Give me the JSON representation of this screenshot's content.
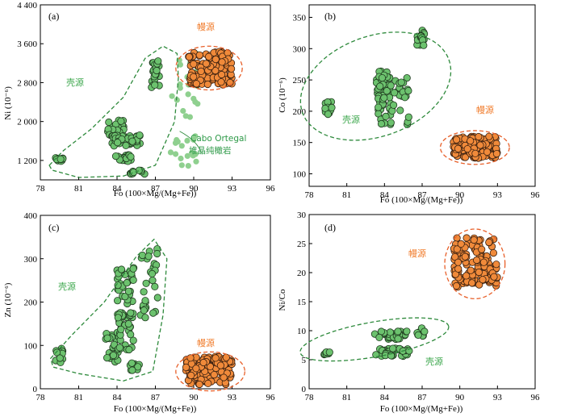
{
  "colors": {
    "crust_fill": "#6cc26e",
    "crust_stroke": "#1f3a1f",
    "mantle_fill": "#f08a3a",
    "mantle_stroke": "#3a2010",
    "crust_ellipse": "#2e8a3c",
    "mantle_ellipse": "#e8602a",
    "crust_text": "#3fa84f",
    "mantle_text": "#f07a28",
    "cabo_fill": "#8fd08f"
  },
  "labels": {
    "crust": "壳源",
    "mantle": "幔源",
    "cabo_line1": "Cabo Ortegal",
    "cabo_line2": "堆晶纯橄岩"
  },
  "chart_data": [
    {
      "panel": "(a)",
      "type": "scatter",
      "xlabel": "Fo (100×Mg/(Mg+Fe))",
      "ylabel": "Ni (10⁻⁶)",
      "xlim": [
        78,
        96
      ],
      "ylim": [
        800,
        4400
      ],
      "xticks": [
        "78",
        "81",
        "84",
        "87",
        "90",
        "93",
        "96"
      ],
      "yticks": [
        "1 200",
        "2 000",
        "2 800",
        "3 600",
        "4 400"
      ],
      "ytick_values": [
        1200,
        2000,
        2800,
        3600,
        4400
      ],
      "series": [
        {
          "name": "壳源",
          "clusters": [
            {
              "x": [
                79.2,
                79.8
              ],
              "y": [
                1180,
                1260
              ],
              "n": 14
            },
            {
              "x": [
                83.2,
                84.6
              ],
              "y": [
                1700,
                2050
              ],
              "n": 30
            },
            {
              "x": [
                83.6,
                85.8
              ],
              "y": [
                1500,
                1720
              ],
              "n": 40
            },
            {
              "x": [
                83.8,
                85.2
              ],
              "y": [
                1180,
                1320
              ],
              "n": 18
            },
            {
              "x": [
                85.0,
                86.2
              ],
              "y": [
                920,
                1000
              ],
              "n": 10
            },
            {
              "x": [
                86.7,
                87.3
              ],
              "y": [
                2700,
                3250
              ],
              "n": 26
            }
          ]
        },
        {
          "name": "Cabo Ortegal 堆晶纯橄岩",
          "clusters": [
            {
              "x": [
                88.2,
                90.4
              ],
              "y": [
                1050,
                3450
              ],
              "n": 40
            }
          ]
        },
        {
          "name": "幔源",
          "clusters": [
            {
              "x": [
                89.6,
                93.0
              ],
              "y": [
                2750,
                3450
              ],
              "n": 150
            }
          ]
        }
      ]
    },
    {
      "panel": "(b)",
      "type": "scatter",
      "xlabel": "Fo (100×Mg/(Mg+Fe))",
      "ylabel": "Co (10⁻⁶)",
      "xlim": [
        78,
        96
      ],
      "ylim": [
        80,
        370
      ],
      "xticks": [
        "78",
        "81",
        "84",
        "87",
        "90",
        "93",
        "96"
      ],
      "yticks": [
        "100",
        "150",
        "200",
        "250",
        "300",
        "350"
      ],
      "ytick_values": [
        100,
        150,
        200,
        250,
        300,
        350
      ],
      "series": [
        {
          "name": "壳源",
          "clusters": [
            {
              "x": [
                79.2,
                79.8
              ],
              "y": [
                195,
                215
              ],
              "n": 14
            },
            {
              "x": [
                83.3,
                84.5
              ],
              "y": [
                225,
                265
              ],
              "n": 30
            },
            {
              "x": [
                83.5,
                86.0
              ],
              "y": [
                178,
                260
              ],
              "n": 60
            },
            {
              "x": [
                86.6,
                87.2
              ],
              "y": [
                305,
                330
              ],
              "n": 20
            }
          ]
        },
        {
          "name": "幔源",
          "clusters": [
            {
              "x": [
                89.5,
                93.0
              ],
              "y": [
                125,
                160
              ],
              "n": 150
            }
          ]
        }
      ]
    },
    {
      "panel": "(c)",
      "type": "scatter",
      "xlabel": "Fo (100×Mg/(Mg+Fe))",
      "ylabel": "Zn (10⁻⁶)",
      "xlim": [
        78,
        96
      ],
      "ylim": [
        0,
        400
      ],
      "xticks": [
        "78",
        "81",
        "84",
        "87",
        "90",
        "93",
        "96"
      ],
      "yticks": [
        "0",
        "100",
        "200",
        "300",
        "400"
      ],
      "ytick_values": [
        0,
        100,
        200,
        300,
        400
      ],
      "series": [
        {
          "name": "壳源",
          "clusters": [
            {
              "x": [
                79.2,
                79.8
              ],
              "y": [
                60,
                100
              ],
              "n": 14
            },
            {
              "x": [
                83.0,
                84.2
              ],
              "y": [
                55,
                130
              ],
              "n": 25
            },
            {
              "x": [
                84.0,
                85.3
              ],
              "y": [
                90,
                280
              ],
              "n": 70
            },
            {
              "x": [
                85.0,
                86.0
              ],
              "y": [
                40,
                65
              ],
              "n": 10
            },
            {
              "x": [
                85.8,
                87.2
              ],
              "y": [
                150,
                330
              ],
              "n": 30
            }
          ]
        },
        {
          "name": "幔源",
          "clusters": [
            {
              "x": [
                89.4,
                93.0
              ],
              "y": [
                10,
                75
              ],
              "n": 150
            }
          ]
        }
      ]
    },
    {
      "panel": "(d)",
      "type": "scatter",
      "xlabel": "Fo (100×Mg/(Mg+Fe))",
      "ylabel": "Ni/Co",
      "xlim": [
        78,
        96
      ],
      "ylim": [
        0,
        30
      ],
      "xticks": [
        "78",
        "81",
        "84",
        "87",
        "90",
        "93",
        "96"
      ],
      "yticks": [
        "0",
        "5",
        "10",
        "15",
        "20",
        "25",
        "30"
      ],
      "ytick_values": [
        0,
        5,
        10,
        15,
        20,
        25,
        30
      ],
      "series": [
        {
          "name": "壳源",
          "clusters": [
            {
              "x": [
                79.2,
                79.8
              ],
              "y": [
                5.8,
                6.4
              ],
              "n": 12
            },
            {
              "x": [
                83.2,
                85.8
              ],
              "y": [
                8.5,
                10.0
              ],
              "n": 30
            },
            {
              "x": [
                83.3,
                86.0
              ],
              "y": [
                5.6,
                7.0
              ],
              "n": 40
            },
            {
              "x": [
                86.6,
                87.2
              ],
              "y": [
                9.0,
                10.8
              ],
              "n": 12
            }
          ]
        },
        {
          "name": "幔源",
          "clusters": [
            {
              "x": [
                89.5,
                93.0
              ],
              "y": [
                17.5,
                26.0
              ],
              "n": 150
            }
          ]
        }
      ]
    }
  ]
}
